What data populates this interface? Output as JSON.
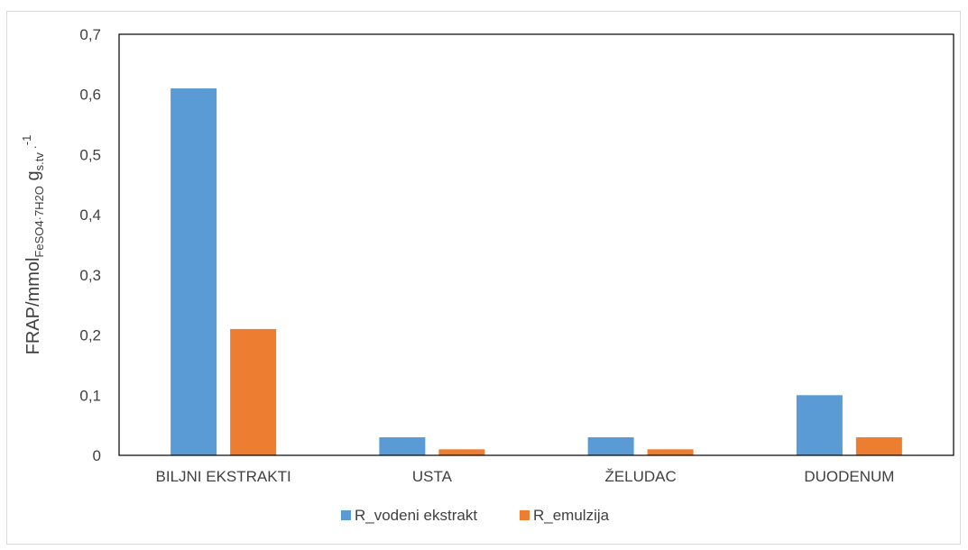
{
  "chart_data": {
    "type": "bar",
    "categories": [
      "BILJNI EKSTRAKTI",
      "USTA",
      "ŽELUDAC",
      "DUODENUM"
    ],
    "series": [
      {
        "name": "R_vodeni ekstrakt",
        "color": "#5b9bd5",
        "values": [
          0.61,
          0.03,
          0.03,
          0.1
        ]
      },
      {
        "name": "R_emulzija",
        "color": "#ed7d31",
        "values": [
          0.21,
          0.01,
          0.01,
          0.03
        ]
      }
    ],
    "ylim": [
      0,
      0.7
    ],
    "yticks": [
      0,
      0.1,
      0.2,
      0.3,
      0.4,
      0.5,
      0.6,
      0.7
    ],
    "ytick_labels": [
      "0",
      "0,1",
      "0,2",
      "0,3",
      "0,4",
      "0,5",
      "0,6",
      "0,7"
    ],
    "ylabel": {
      "main": "FRAP/mmol",
      "sub1": "FeSO4·7H2O",
      "mid": " g",
      "sub2": "s.tv",
      "sup": "-1"
    },
    "xlabel": "",
    "grid": false,
    "legend_position": "bottom"
  }
}
